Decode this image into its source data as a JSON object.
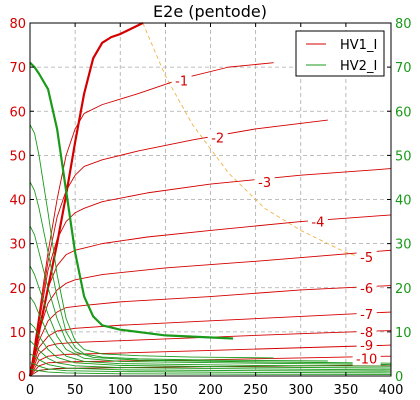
{
  "chart_data": {
    "type": "line",
    "title": "E2e (pentode)",
    "xlabel": "",
    "ylabel": "",
    "y2label": "",
    "xlim": [
      0,
      400
    ],
    "ylim": [
      0,
      80
    ],
    "y2lim": [
      0,
      80
    ],
    "xticks": [
      0,
      50,
      100,
      150,
      200,
      250,
      300,
      350,
      400
    ],
    "yticks": [
      0,
      10,
      20,
      30,
      40,
      50,
      60,
      70,
      80
    ],
    "grid": true,
    "legend_position": "top-right",
    "legend": [
      {
        "name": "HV1_I",
        "color": "#d40000"
      },
      {
        "name": "HV2_I",
        "color": "#1a9a1a"
      }
    ],
    "curve_labels": [
      {
        "text": "-1",
        "x": 168,
        "y": 67
      },
      {
        "text": "-2",
        "x": 208,
        "y": 54
      },
      {
        "text": "-3",
        "x": 260,
        "y": 44
      },
      {
        "text": "-4",
        "x": 319,
        "y": 35
      },
      {
        "text": "-5",
        "x": 373,
        "y": 27
      },
      {
        "text": "-6",
        "x": 373,
        "y": 20
      },
      {
        "text": "-7",
        "x": 373,
        "y": 14
      },
      {
        "text": "-8",
        "x": 373,
        "y": 10
      },
      {
        "text": "-9",
        "x": 373,
        "y": 7
      },
      {
        "text": "-10",
        "x": 373,
        "y": 4
      }
    ],
    "series": [
      {
        "name": "HV1_I",
        "color": "#d40000",
        "width": 0.9,
        "x": [
          0,
          10,
          20,
          30,
          40,
          50,
          60,
          80,
          120,
          170,
          220,
          270
        ],
        "y": [
          0,
          14,
          28,
          40,
          50,
          56,
          59.5,
          61.5,
          64,
          67.5,
          70,
          71
        ]
      },
      {
        "name": "HV1_I",
        "color": "#d40000",
        "width": 0.9,
        "x": [
          0,
          10,
          20,
          30,
          40,
          50,
          60,
          80,
          120,
          180,
          250,
          330
        ],
        "y": [
          0,
          13,
          26,
          36,
          42,
          45.5,
          47.5,
          49,
          51,
          53.5,
          56,
          58
        ]
      },
      {
        "name": "HV1_I",
        "color": "#d40000",
        "width": 0.9,
        "x": [
          0,
          10,
          20,
          30,
          40,
          50,
          60,
          80,
          130,
          200,
          300,
          400
        ],
        "y": [
          0,
          12,
          24,
          31,
          35,
          37,
          38,
          39.5,
          41.5,
          43.5,
          45.5,
          47
        ]
      },
      {
        "name": "HV1_I",
        "color": "#d40000",
        "width": 0.9,
        "x": [
          0,
          10,
          20,
          30,
          40,
          50,
          60,
          80,
          130,
          200,
          300,
          400
        ],
        "y": [
          0,
          11,
          20,
          25,
          27.5,
          28.5,
          29,
          30,
          31.5,
          33,
          35,
          36.5
        ]
      },
      {
        "name": "HV1_I",
        "color": "#d40000",
        "width": 0.9,
        "x": [
          0,
          10,
          20,
          30,
          40,
          50,
          80,
          150,
          250,
          400
        ],
        "y": [
          0,
          10,
          16.5,
          19.5,
          21,
          21.8,
          23,
          24.5,
          26,
          28.5
        ]
      },
      {
        "name": "HV1_I",
        "color": "#d40000",
        "width": 0.9,
        "x": [
          0,
          10,
          20,
          30,
          40,
          60,
          100,
          200,
          300,
          400
        ],
        "y": [
          0,
          8,
          12.5,
          14.5,
          15.5,
          16,
          16.8,
          18,
          19.5,
          20.5
        ]
      },
      {
        "name": "HV1_I",
        "color": "#d40000",
        "width": 0.9,
        "x": [
          0,
          10,
          20,
          30,
          50,
          100,
          200,
          300,
          400
        ],
        "y": [
          0,
          6.5,
          9,
          10.2,
          10.8,
          11.5,
          12.5,
          13.5,
          14.5
        ]
      },
      {
        "name": "HV1_I",
        "color": "#d40000",
        "width": 0.9,
        "x": [
          0,
          10,
          20,
          30,
          50,
          100,
          200,
          300,
          400
        ],
        "y": [
          0,
          5,
          6.8,
          7.3,
          7.6,
          8,
          8.8,
          9.6,
          10.3
        ]
      },
      {
        "name": "HV1_I",
        "color": "#d40000",
        "width": 0.9,
        "x": [
          0,
          10,
          20,
          40,
          100,
          200,
          300,
          400
        ],
        "y": [
          0,
          3.5,
          4.5,
          4.9,
          5.2,
          5.8,
          6.4,
          7
        ]
      },
      {
        "name": "HV1_I",
        "color": "#d40000",
        "width": 0.9,
        "x": [
          0,
          10,
          20,
          40,
          100,
          200,
          300,
          400
        ],
        "y": [
          0,
          2.3,
          3,
          3.2,
          3.4,
          3.7,
          4.1,
          4.5
        ]
      },
      {
        "name": "HV1_I",
        "color": "#8b1a00",
        "width": 0.9,
        "x": [
          0,
          10,
          30,
          100,
          200,
          300,
          400
        ],
        "y": [
          0,
          1.3,
          1.7,
          1.9,
          2.1,
          2.3,
          2.5
        ]
      },
      {
        "name": "HV1_I",
        "color": "#d40000",
        "width": 2.2,
        "x": [
          0,
          10,
          20,
          30,
          40,
          50,
          60,
          70,
          80,
          90,
          100,
          125
        ],
        "y": [
          0,
          10,
          20,
          30,
          41,
          53,
          64,
          72,
          75.5,
          76.8,
          77.5,
          80
        ]
      },
      {
        "name": "HV2_I",
        "color": "#1a9a1a",
        "width": 0.9,
        "x": [
          0,
          5,
          10,
          20,
          30,
          40,
          50,
          60,
          80,
          120,
          180,
          270
        ],
        "y": [
          57,
          55,
          50,
          37,
          23,
          13,
          8,
          6,
          5,
          4.6,
          4.3,
          4.1
        ]
      },
      {
        "name": "HV2_I",
        "color": "#1a9a1a",
        "width": 0.9,
        "x": [
          0,
          5,
          10,
          20,
          30,
          40,
          50,
          60,
          80,
          120,
          200,
          330
        ],
        "y": [
          44,
          42,
          38,
          28,
          18,
          10,
          6.5,
          5,
          4.3,
          3.9,
          3.6,
          3.4
        ]
      },
      {
        "name": "HV2_I",
        "color": "#1a9a1a",
        "width": 0.9,
        "x": [
          0,
          5,
          10,
          20,
          30,
          40,
          50,
          70,
          120,
          250,
          400
        ],
        "y": [
          34,
          32,
          28,
          20,
          13,
          8,
          5.5,
          4.2,
          3.6,
          3.2,
          2.9
        ]
      },
      {
        "name": "HV2_I",
        "color": "#1a9a1a",
        "width": 0.9,
        "x": [
          0,
          5,
          10,
          20,
          30,
          40,
          60,
          100,
          250,
          400
        ],
        "y": [
          25,
          23,
          20,
          14,
          9,
          6,
          4,
          3.3,
          2.9,
          2.6
        ]
      },
      {
        "name": "HV2_I",
        "color": "#1a9a1a",
        "width": 0.9,
        "x": [
          0,
          5,
          10,
          20,
          30,
          40,
          60,
          100,
          250,
          400
        ],
        "y": [
          18,
          16.5,
          14,
          9.5,
          6.5,
          4.5,
          3.3,
          2.8,
          2.4,
          2.2
        ]
      },
      {
        "name": "HV2_I",
        "color": "#1a9a1a",
        "width": 0.9,
        "x": [
          0,
          5,
          10,
          20,
          30,
          50,
          100,
          250,
          400
        ],
        "y": [
          12,
          11,
          9,
          6,
          4.2,
          3,
          2.4,
          2,
          1.8
        ]
      },
      {
        "name": "HV2_I",
        "color": "#1a9a1a",
        "width": 0.9,
        "x": [
          0,
          5,
          10,
          20,
          30,
          50,
          100,
          250,
          400
        ],
        "y": [
          8,
          7,
          5.8,
          4,
          3,
          2.3,
          1.9,
          1.6,
          1.4
        ]
      },
      {
        "name": "HV2_I",
        "color": "#1a9a1a",
        "width": 0.9,
        "x": [
          0,
          5,
          10,
          20,
          40,
          100,
          250,
          400
        ],
        "y": [
          5,
          4.5,
          3.7,
          2.6,
          1.8,
          1.4,
          1.2,
          1.1
        ]
      },
      {
        "name": "HV2_I",
        "color": "#1a9a1a",
        "width": 0.9,
        "x": [
          0,
          5,
          10,
          20,
          40,
          100,
          250,
          400
        ],
        "y": [
          3,
          2.7,
          2.2,
          1.6,
          1.2,
          1,
          0.8,
          0.7
        ]
      },
      {
        "name": "HV2_I",
        "color": "#1a9a1a",
        "width": 0.9,
        "x": [
          0,
          10,
          20,
          40,
          100,
          250,
          400
        ],
        "y": [
          1.5,
          1.2,
          0.9,
          0.7,
          0.5,
          0.4,
          0.35
        ]
      },
      {
        "name": "HV2_I",
        "color": "#1a9a1a",
        "width": 2.2,
        "x": [
          0,
          5,
          10,
          20,
          30,
          40,
          50,
          60,
          70,
          80,
          100,
          150,
          225
        ],
        "y": [
          71,
          70,
          68.5,
          65,
          56,
          42,
          28,
          18,
          13.5,
          11.5,
          10.5,
          9.2,
          8.5
        ]
      }
    ],
    "load_line": {
      "color": "#f2b24a",
      "x": [
        125,
        150,
        180,
        220,
        260,
        300,
        350,
        380
      ],
      "y": [
        80,
        68,
        57,
        46,
        38,
        33,
        28,
        26
      ]
    }
  }
}
